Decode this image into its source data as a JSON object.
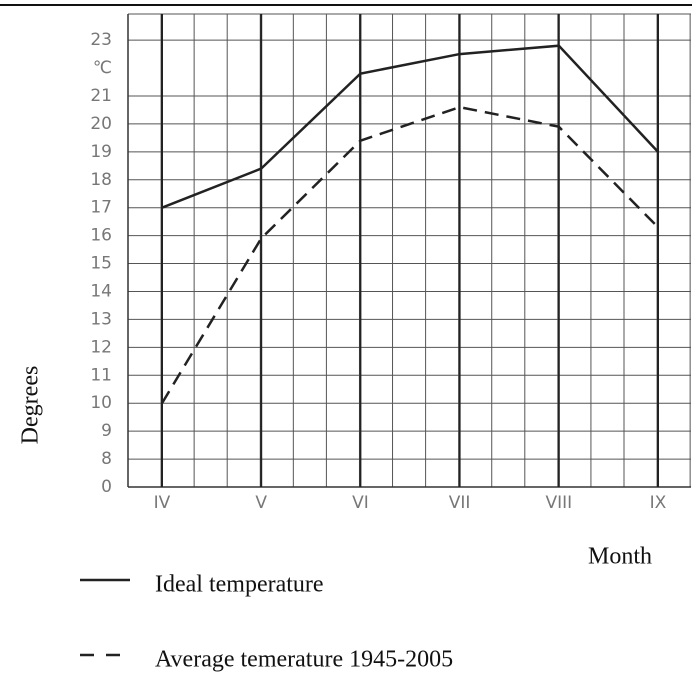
{
  "chart_data": {
    "type": "line",
    "y_label": "Degrees",
    "y_unit": "℃",
    "x_label": "Month",
    "categories": [
      "IV",
      "V",
      "VI",
      "VII",
      "VIII",
      "IX"
    ],
    "series": [
      {
        "name": "Ideal temperature",
        "color": "#222222",
        "style": "solid",
        "values": [
          17,
          18.4,
          21.8,
          22.5,
          22.8,
          19
        ]
      },
      {
        "name": "Average temerature 1945-2005",
        "color": "#222222",
        "style": "dashed",
        "values": [
          10,
          15.9,
          19.4,
          20.6,
          19.9,
          16.3
        ]
      }
    ],
    "ylim": [
      0,
      23
    ],
    "axis_break": true,
    "yticks": [
      0,
      8,
      9,
      10,
      11,
      12,
      13,
      14,
      15,
      16,
      17,
      18,
      19,
      20,
      21,
      23
    ],
    "grid": true
  }
}
